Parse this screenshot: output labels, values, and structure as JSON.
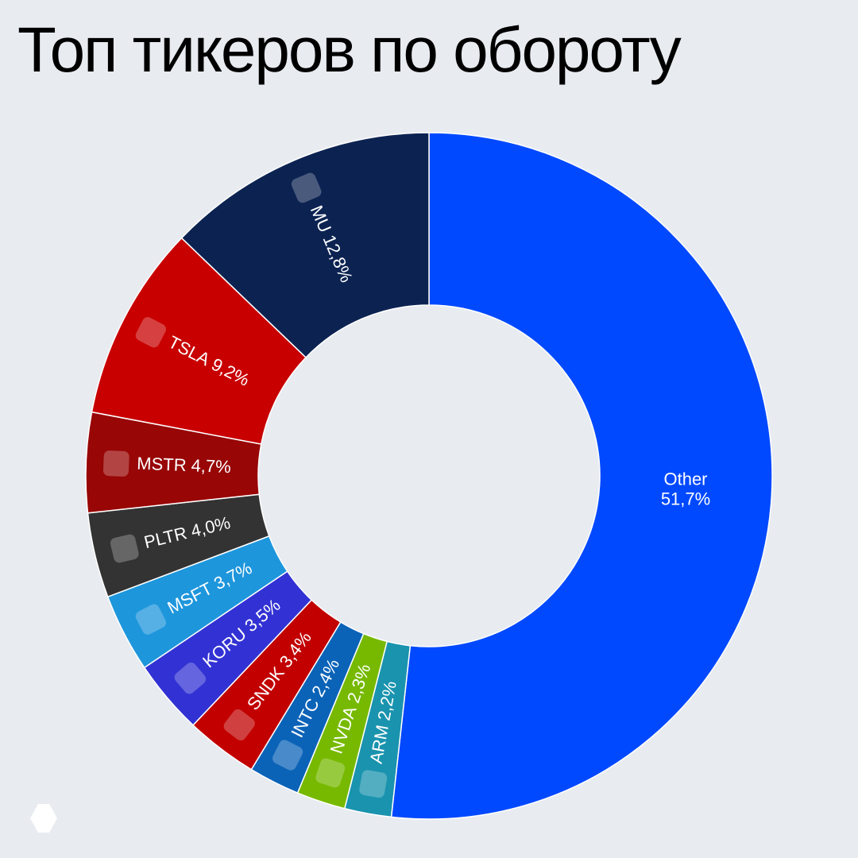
{
  "chart_data": {
    "type": "donut",
    "title": "Топ тикеров по обороту",
    "categories": [
      "Other",
      "ARM",
      "NVDA",
      "INTC",
      "SNDK",
      "KORU",
      "MSFT",
      "PLTR",
      "MSTR",
      "TSLA",
      "MU"
    ],
    "values": [
      51.7,
      2.2,
      2.3,
      2.4,
      3.4,
      3.5,
      3.7,
      4.0,
      4.7,
      9.2,
      12.8
    ],
    "value_labels": [
      "51,7%",
      "2,2%",
      "2,3%",
      "2,4%",
      "3,4%",
      "3,5%",
      "3,7%",
      "4,0%",
      "4,7%",
      "9,2%",
      "12,8%"
    ],
    "colors": [
      "#0049ff",
      "#1a93ae",
      "#76b900",
      "#0b63b8",
      "#c20000",
      "#3232d4",
      "#1e96dc",
      "#333333",
      "#980606",
      "#c80000",
      "#0c2352"
    ]
  }
}
